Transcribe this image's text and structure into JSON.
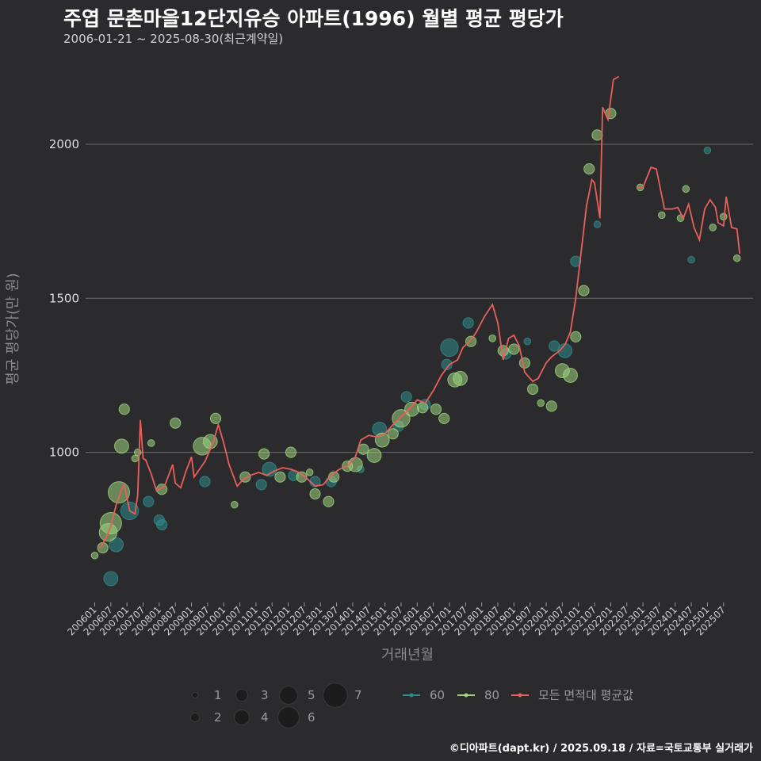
{
  "header": {
    "title": "주엽 문촌마을12단지유승 아파트(1996) 월별 평균 평당가",
    "subtitle": "2006-01-21 ~ 2025-08-30(최근계약일)"
  },
  "caption": "©디아파트(dapt.kr) / 2025.09.18 / 자료=국토교통부 실거래가",
  "colors": {
    "background": "#2b2a2c",
    "grid": "#6a6a6a",
    "s60": "#2f8c8c",
    "s80": "#9fd480",
    "avg": "#e8605c"
  },
  "chart_data": {
    "type": "line",
    "xlabel": "거래년월",
    "ylabel": "평균 평당가(만 원)",
    "ylim": [
      510,
      2250
    ],
    "yticks": [
      1000,
      1500,
      2000
    ],
    "xtick_labels": [
      "200601",
      "200607",
      "200701",
      "200707",
      "200801",
      "200807",
      "200901",
      "200907",
      "201001",
      "201007",
      "201101",
      "201107",
      "201201",
      "201207",
      "201301",
      "201307",
      "201401",
      "201407",
      "201501",
      "201507",
      "201601",
      "201607",
      "201701",
      "201707",
      "201801",
      "201807",
      "201901",
      "201907",
      "202001",
      "202007",
      "202101",
      "202107",
      "202201",
      "202207",
      "202301",
      "202307",
      "202401",
      "202407",
      "202501",
      "202507"
    ],
    "grid": "horizontal",
    "legend": {
      "size_title": "",
      "size_entries": [
        "1",
        "2",
        "3",
        "4",
        "5",
        "6",
        "7"
      ],
      "series_entries": [
        "60",
        "80",
        "모든 면적대 평균값"
      ]
    },
    "series": [
      {
        "name": "모든 면적대 평균값",
        "type": "line",
        "points": [
          [
            "2006-03",
            690
          ],
          [
            "2006-05",
            720
          ],
          [
            "2006-07",
            760
          ],
          [
            "2006-09",
            830
          ],
          [
            "2006-11",
            880
          ],
          [
            "2006-12",
            895
          ],
          [
            "2007-02",
            810
          ],
          [
            "2007-04",
            800
          ],
          [
            "2007-05",
            860
          ],
          [
            "2007-06",
            1105
          ],
          [
            "2007-07",
            980
          ],
          [
            "2007-08",
            975
          ],
          [
            "2007-10",
            930
          ],
          [
            "2007-12",
            875
          ],
          [
            "2008-03",
            890
          ],
          [
            "2008-06",
            960
          ],
          [
            "2008-07",
            900
          ],
          [
            "2008-09",
            885
          ],
          [
            "2008-11",
            940
          ],
          [
            "2009-01",
            985
          ],
          [
            "2009-02",
            920
          ],
          [
            "2009-04",
            945
          ],
          [
            "2009-06",
            970
          ],
          [
            "2009-09",
            1030
          ],
          [
            "2009-11",
            1090
          ],
          [
            "2010-01",
            1030
          ],
          [
            "2010-03",
            960
          ],
          [
            "2010-06",
            890
          ],
          [
            "2010-08",
            910
          ],
          [
            "2010-11",
            925
          ],
          [
            "2011-02",
            935
          ],
          [
            "2011-05",
            925
          ],
          [
            "2011-08",
            940
          ],
          [
            "2011-11",
            950
          ],
          [
            "2012-02",
            945
          ],
          [
            "2012-05",
            935
          ],
          [
            "2012-08",
            915
          ],
          [
            "2012-11",
            890
          ],
          [
            "2013-02",
            895
          ],
          [
            "2013-05",
            925
          ],
          [
            "2013-08",
            945
          ],
          [
            "2013-11",
            955
          ],
          [
            "2014-02",
            985
          ],
          [
            "2014-04",
            1040
          ],
          [
            "2014-07",
            1055
          ],
          [
            "2014-10",
            1050
          ],
          [
            "2015-01",
            1060
          ],
          [
            "2015-04",
            1090
          ],
          [
            "2015-07",
            1115
          ],
          [
            "2015-10",
            1140
          ],
          [
            "2016-01",
            1170
          ],
          [
            "2016-04",
            1160
          ],
          [
            "2016-07",
            1200
          ],
          [
            "2016-10",
            1250
          ],
          [
            "2017-01",
            1285
          ],
          [
            "2017-04",
            1300
          ],
          [
            "2017-06",
            1340
          ],
          [
            "2017-09",
            1365
          ],
          [
            "2017-11",
            1390
          ],
          [
            "2018-02",
            1440
          ],
          [
            "2018-05",
            1480
          ],
          [
            "2018-07",
            1420
          ],
          [
            "2018-09",
            1300
          ],
          [
            "2018-11",
            1370
          ],
          [
            "2019-01",
            1380
          ],
          [
            "2019-03",
            1345
          ],
          [
            "2019-05",
            1260
          ],
          [
            "2019-08",
            1230
          ],
          [
            "2019-10",
            1240
          ],
          [
            "2020-01",
            1290
          ],
          [
            "2020-03",
            1310
          ],
          [
            "2020-06",
            1330
          ],
          [
            "2020-08",
            1350
          ],
          [
            "2020-10",
            1390
          ],
          [
            "2020-12",
            1500
          ],
          [
            "2021-02",
            1650
          ],
          [
            "2021-04",
            1800
          ],
          [
            "2021-06",
            1885
          ],
          [
            "2021-07",
            1875
          ],
          [
            "2021-09",
            1760
          ],
          [
            "2021-10",
            2120
          ],
          [
            "2021-12",
            2080
          ],
          [
            "2022-02",
            2210
          ],
          [
            "2022-04",
            2220
          ],
          null,
          [
            "2022-11",
            1860
          ],
          [
            "2023-01",
            1860
          ],
          [
            "2023-04",
            1925
          ],
          [
            "2023-06",
            1920
          ],
          [
            "2023-09",
            1790
          ],
          [
            "2023-12",
            1790
          ],
          [
            "2024-02",
            1795
          ],
          [
            "2024-04",
            1760
          ],
          [
            "2024-06",
            1805
          ],
          [
            "2024-08",
            1730
          ],
          [
            "2024-10",
            1690
          ],
          [
            "2024-12",
            1790
          ],
          [
            "2025-02",
            1820
          ],
          [
            "2025-04",
            1795
          ],
          [
            "2025-05",
            1745
          ],
          [
            "2025-07",
            1735
          ],
          [
            "2025-08",
            1830
          ],
          [
            "2025-10",
            1730
          ],
          [
            "2025-12",
            1725
          ],
          [
            "2026-01",
            1645
          ]
        ]
      },
      {
        "name": "60",
        "type": "scatter",
        "points": [
          [
            "2006-07",
            590,
            3
          ],
          [
            "2006-09",
            700,
            3
          ],
          [
            "2007-02",
            810,
            4
          ],
          [
            "2007-09",
            840,
            2
          ],
          [
            "2008-01",
            780,
            2
          ],
          [
            "2008-02",
            765,
            2
          ],
          [
            "2009-06",
            905,
            2
          ],
          [
            "2011-03",
            895,
            2
          ],
          [
            "2011-06",
            945,
            3
          ],
          [
            "2012-03",
            925,
            2
          ],
          [
            "2012-11",
            905,
            2
          ],
          [
            "2013-05",
            905,
            2
          ],
          [
            "2014-04",
            945,
            1
          ],
          [
            "2014-11",
            1075,
            3
          ],
          [
            "2015-06",
            1085,
            2
          ],
          [
            "2015-09",
            1180,
            2
          ],
          [
            "2016-04",
            1155,
            2
          ],
          [
            "2016-12",
            1285,
            2
          ],
          [
            "2017-01",
            1340,
            4
          ],
          [
            "2017-08",
            1420,
            2
          ],
          [
            "2018-10",
            1320,
            2
          ],
          [
            "2019-06",
            1360,
            1
          ],
          [
            "2020-04",
            1345,
            2
          ],
          [
            "2020-08",
            1330,
            3
          ],
          [
            "2020-12",
            1620,
            2
          ],
          [
            "2021-08",
            1740,
            1
          ],
          [
            "2024-07",
            1625,
            1
          ],
          [
            "2025-01",
            1980,
            1
          ]
        ]
      },
      {
        "name": "80",
        "type": "scatter",
        "points": [
          [
            "2006-01",
            665,
            1
          ],
          [
            "2006-04",
            690,
            2
          ],
          [
            "2006-06",
            740,
            4
          ],
          [
            "2006-07",
            770,
            5
          ],
          [
            "2006-10",
            870,
            5
          ],
          [
            "2006-11",
            1020,
            3
          ],
          [
            "2006-12",
            1140,
            2
          ],
          [
            "2007-04",
            980,
            1
          ],
          [
            "2007-05",
            1000,
            1
          ],
          [
            "2007-10",
            1030,
            1
          ],
          [
            "2008-02",
            880,
            2
          ],
          [
            "2008-07",
            1095,
            2
          ],
          [
            "2009-05",
            1020,
            4
          ],
          [
            "2009-08",
            1035,
            3
          ],
          [
            "2009-10",
            1110,
            2
          ],
          [
            "2010-05",
            830,
            1
          ],
          [
            "2010-09",
            920,
            2
          ],
          [
            "2011-04",
            995,
            2
          ],
          [
            "2011-10",
            920,
            2
          ],
          [
            "2012-02",
            1000,
            2
          ],
          [
            "2012-06",
            920,
            2
          ],
          [
            "2012-09",
            935,
            1
          ],
          [
            "2012-11",
            865,
            2
          ],
          [
            "2013-04",
            840,
            2
          ],
          [
            "2013-06",
            920,
            2
          ],
          [
            "2013-11",
            955,
            2
          ],
          [
            "2014-02",
            960,
            3
          ],
          [
            "2014-05",
            1010,
            2
          ],
          [
            "2014-09",
            990,
            3
          ],
          [
            "2014-12",
            1040,
            3
          ],
          [
            "2015-04",
            1060,
            2
          ],
          [
            "2015-07",
            1110,
            4
          ],
          [
            "2015-11",
            1140,
            3
          ],
          [
            "2016-03",
            1145,
            2
          ],
          [
            "2016-08",
            1140,
            2
          ],
          [
            "2016-11",
            1110,
            2
          ],
          [
            "2017-03",
            1235,
            3
          ],
          [
            "2017-05",
            1240,
            3
          ],
          [
            "2017-09",
            1360,
            2
          ],
          [
            "2018-05",
            1370,
            1
          ],
          [
            "2018-09",
            1330,
            2
          ],
          [
            "2019-01",
            1335,
            2
          ],
          [
            "2019-05",
            1290,
            2
          ],
          [
            "2019-08",
            1205,
            2
          ],
          [
            "2019-11",
            1160,
            1
          ],
          [
            "2020-03",
            1150,
            2
          ],
          [
            "2020-07",
            1265,
            3
          ],
          [
            "2020-10",
            1250,
            3
          ],
          [
            "2020-12",
            1375,
            2
          ],
          [
            "2021-03",
            1525,
            2
          ],
          [
            "2021-05",
            1920,
            2
          ],
          [
            "2021-08",
            2030,
            2
          ],
          [
            "2022-01",
            2100,
            2
          ],
          [
            "2022-12",
            1860,
            1
          ],
          [
            "2023-08",
            1770,
            1
          ],
          [
            "2024-03",
            1760,
            1
          ],
          [
            "2024-05",
            1855,
            1
          ],
          [
            "2025-03",
            1730,
            1
          ],
          [
            "2025-07",
            1765,
            1
          ],
          [
            "2025-12",
            1630,
            1
          ]
        ]
      }
    ]
  }
}
